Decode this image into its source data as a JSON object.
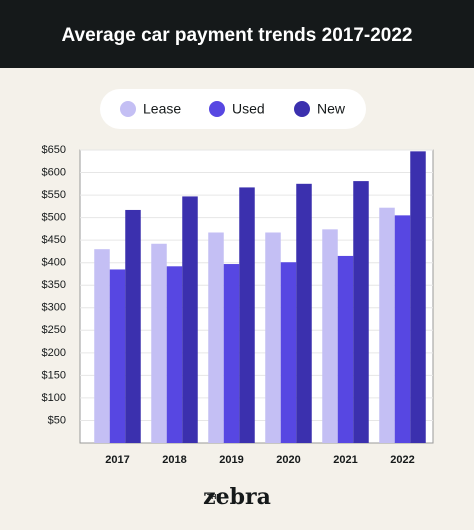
{
  "chart_data": {
    "type": "bar",
    "title": "Average car payment trends 2017-2022",
    "categories": [
      "2017",
      "2018",
      "2019",
      "2020",
      "2021",
      "2022"
    ],
    "series": [
      {
        "name": "Lease",
        "color": "#c4bff4",
        "values": [
          430,
          442,
          467,
          467,
          474,
          522
        ]
      },
      {
        "name": "Used",
        "color": "#5747e2",
        "values": [
          385,
          392,
          397,
          401,
          415,
          505
        ]
      },
      {
        "name": "New",
        "color": "#3b30ae",
        "values": [
          517,
          547,
          567,
          575,
          581,
          647
        ]
      }
    ],
    "ylim": [
      0,
      650
    ],
    "yticks": [
      {
        "value": 50,
        "label": "$50"
      },
      {
        "value": 100,
        "label": "$100"
      },
      {
        "value": 150,
        "label": "$150"
      },
      {
        "value": 200,
        "label": "$200"
      },
      {
        "value": 250,
        "label": "$250"
      },
      {
        "value": 300,
        "label": "$300"
      },
      {
        "value": 350,
        "label": "$350"
      },
      {
        "value": 400,
        "label": "$400"
      },
      {
        "value": 450,
        "label": "$450"
      },
      {
        "value": 500,
        "label": "$500"
      },
      {
        "value": 550,
        "label": "$550"
      },
      {
        "value": 600,
        "label": "$600"
      },
      {
        "value": 650,
        "label": "$650"
      }
    ],
    "grid": true
  },
  "footer": {
    "small": "THE",
    "brand": "zebra"
  }
}
